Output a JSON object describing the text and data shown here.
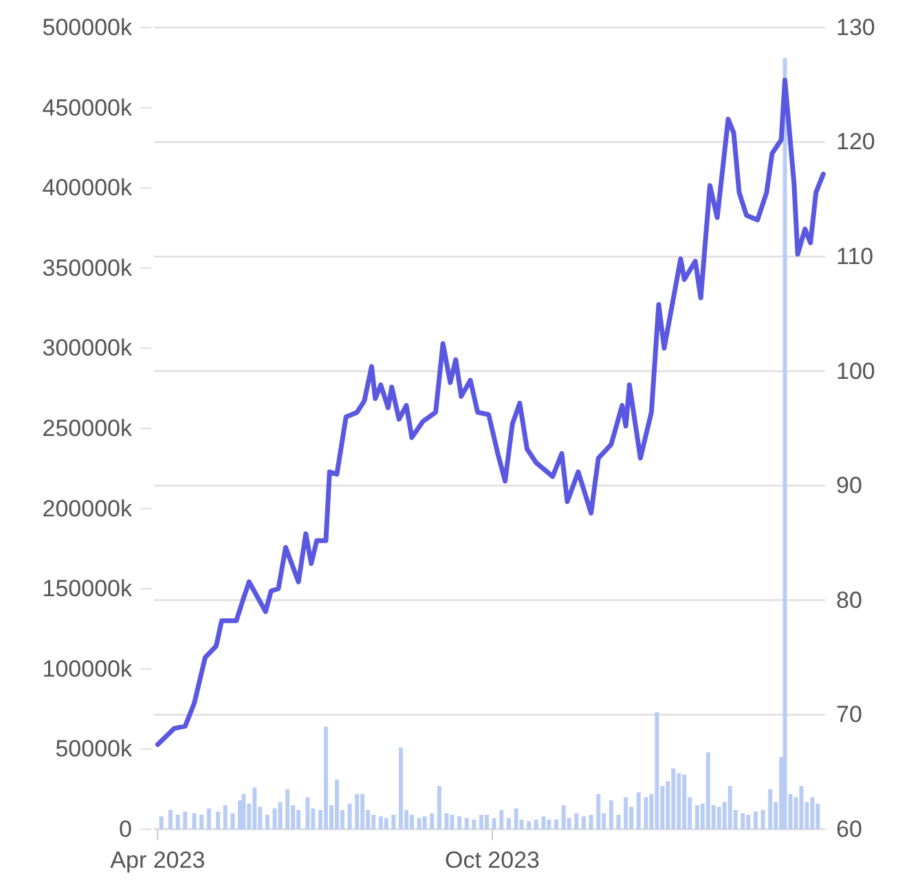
{
  "chart_data": {
    "type": "line",
    "xlim": [
      "2023-03-30",
      "2024-03-31"
    ],
    "xticks": [
      {
        "value": "2023-04-01",
        "label": "Apr 2023"
      },
      {
        "value": "2023-10-01",
        "label": "Oct 2023"
      }
    ],
    "ylim": [
      0,
      500000
    ],
    "yticks": [
      {
        "value": 0,
        "label": "0"
      },
      {
        "value": 50000,
        "label": "50000k"
      },
      {
        "value": 100000,
        "label": "100000k"
      },
      {
        "value": 150000,
        "label": "150000k"
      },
      {
        "value": 200000,
        "label": "200000k"
      },
      {
        "value": 250000,
        "label": "250000k"
      },
      {
        "value": 300000,
        "label": "300000k"
      },
      {
        "value": 350000,
        "label": "350000k"
      },
      {
        "value": 400000,
        "label": "400000k"
      },
      {
        "value": 450000,
        "label": "450000k"
      },
      {
        "value": 500000,
        "label": "500000k"
      }
    ],
    "y2lim": [
      60,
      130
    ],
    "y2ticks": [
      60,
      70,
      80,
      90,
      100,
      110,
      120,
      130
    ],
    "grid": "y",
    "series": [
      {
        "type": "bar",
        "axis": "y",
        "color": "#b9cdf4",
        "x": [
          "2023-04-03",
          "2023-04-08",
          "2023-04-12",
          "2023-04-16",
          "2023-04-21",
          "2023-04-25",
          "2023-04-29",
          "2023-05-04",
          "2023-05-08",
          "2023-05-12",
          "2023-05-16",
          "2023-05-18",
          "2023-05-21",
          "2023-05-24",
          "2023-05-27",
          "2023-05-31",
          "2023-06-04",
          "2023-06-07",
          "2023-06-11",
          "2023-06-14",
          "2023-06-17",
          "2023-06-22",
          "2023-06-25",
          "2023-06-29",
          "2023-07-02",
          "2023-07-05",
          "2023-07-08",
          "2023-07-11",
          "2023-07-15",
          "2023-07-19",
          "2023-07-22",
          "2023-07-25",
          "2023-07-28",
          "2023-08-01",
          "2023-08-04",
          "2023-08-08",
          "2023-08-12",
          "2023-08-15",
          "2023-08-18",
          "2023-08-22",
          "2023-08-25",
          "2023-08-29",
          "2023-09-02",
          "2023-09-06",
          "2023-09-09",
          "2023-09-13",
          "2023-09-17",
          "2023-09-21",
          "2023-09-25",
          "2023-09-28",
          "2023-10-02",
          "2023-10-06",
          "2023-10-10",
          "2023-10-14",
          "2023-10-17",
          "2023-10-21",
          "2023-10-25",
          "2023-10-29",
          "2023-11-01",
          "2023-11-05",
          "2023-11-09",
          "2023-11-12",
          "2023-11-16",
          "2023-11-20",
          "2023-11-24",
          "2023-11-28",
          "2023-12-01",
          "2023-12-05",
          "2023-12-09",
          "2023-12-13",
          "2023-12-16",
          "2023-12-20",
          "2023-12-24",
          "2023-12-27",
          "2023-12-30",
          "2024-01-02",
          "2024-01-05",
          "2024-01-08",
          "2024-01-11",
          "2024-01-14",
          "2024-01-17",
          "2024-01-21",
          "2024-01-24",
          "2024-01-27",
          "2024-01-30",
          "2024-02-02",
          "2024-02-05",
          "2024-02-08",
          "2024-02-11",
          "2024-02-15",
          "2024-02-18",
          "2024-02-22",
          "2024-02-26",
          "2024-03-01",
          "2024-03-04",
          "2024-03-07",
          "2024-03-09",
          "2024-03-12",
          "2024-03-15",
          "2024-03-18",
          "2024-03-21",
          "2024-03-24",
          "2024-03-27"
        ],
        "values": [
          8000,
          12000,
          9000,
          11000,
          10000,
          9000,
          13000,
          11000,
          15000,
          10000,
          18000,
          22000,
          16000,
          26000,
          14000,
          9000,
          13000,
          17000,
          25000,
          15000,
          12000,
          20000,
          13000,
          12000,
          64000,
          15000,
          31000,
          12000,
          16000,
          22000,
          22000,
          12000,
          9000,
          8000,
          7000,
          9000,
          51000,
          12000,
          9000,
          7000,
          8000,
          10000,
          27000,
          10000,
          9000,
          8000,
          7000,
          6000,
          9000,
          9000,
          7000,
          12000,
          7000,
          13000,
          6000,
          5000,
          6000,
          8000,
          6000,
          6000,
          15000,
          7000,
          10000,
          8000,
          9000,
          22000,
          10000,
          18000,
          9000,
          20000,
          14000,
          23000,
          20000,
          22000,
          73000,
          27000,
          30000,
          38000,
          35000,
          34000,
          20000,
          15000,
          16000,
          48000,
          15000,
          14000,
          17000,
          27000,
          12000,
          10000,
          9000,
          11000,
          12000,
          25000,
          17000,
          45000,
          481000,
          22000,
          20000,
          27000,
          17000,
          20000,
          16000
        ]
      },
      {
        "axis": "y2",
        "color": "#5a58e0",
        "x": [
          "2023-04-01",
          "2023-04-10",
          "2023-04-16",
          "2023-04-21",
          "2023-04-27",
          "2023-05-03",
          "2023-05-06",
          "2023-05-14",
          "2023-05-18",
          "2023-05-21",
          "2023-05-30",
          "2023-06-02",
          "2023-06-06",
          "2023-06-10",
          "2023-06-17",
          "2023-06-21",
          "2023-06-24",
          "2023-06-27",
          "2023-07-02",
          "2023-07-04",
          "2023-07-08",
          "2023-07-13",
          "2023-07-19",
          "2023-07-23",
          "2023-07-27",
          "2023-07-29",
          "2023-08-01",
          "2023-08-05",
          "2023-08-07",
          "2023-08-11",
          "2023-08-15",
          "2023-08-18",
          "2023-08-24",
          "2023-08-31",
          "2023-09-04",
          "2023-09-08",
          "2023-09-11",
          "2023-09-14",
          "2023-09-19",
          "2023-09-23",
          "2023-09-29",
          "2023-10-04",
          "2023-10-08",
          "2023-10-12",
          "2023-10-16",
          "2023-10-20",
          "2023-10-25",
          "2023-11-03",
          "2023-11-08",
          "2023-11-11",
          "2023-11-17",
          "2023-11-24",
          "2023-11-28",
          "2023-12-05",
          "2023-12-11",
          "2023-12-13",
          "2023-12-15",
          "2023-12-21",
          "2023-12-27",
          "2023-12-31",
          "2024-01-03",
          "2024-01-12",
          "2024-01-14",
          "2024-01-20",
          "2024-01-23",
          "2024-01-28",
          "2024-02-01",
          "2024-02-07",
          "2024-02-10",
          "2024-02-13",
          "2024-02-17",
          "2024-02-23",
          "2024-02-28",
          "2024-03-02",
          "2024-03-07",
          "2024-03-09",
          "2024-03-14",
          "2024-03-16",
          "2024-03-20",
          "2024-03-23",
          "2024-03-26",
          "2024-03-30"
        ],
        "values": [
          67.4,
          68.8,
          69.0,
          71.0,
          75.0,
          76.0,
          78.2,
          78.2,
          80.2,
          81.6,
          79.0,
          80.8,
          81.0,
          84.6,
          81.6,
          85.8,
          83.2,
          85.2,
          85.2,
          91.2,
          91.0,
          96.0,
          96.4,
          97.4,
          100.4,
          97.6,
          98.8,
          96.8,
          98.6,
          95.8,
          97.0,
          94.2,
          95.6,
          96.4,
          102.4,
          99.0,
          101.0,
          97.8,
          99.2,
          96.4,
          96.2,
          92.8,
          90.4,
          95.4,
          97.2,
          93.2,
          92.0,
          90.8,
          92.8,
          88.6,
          91.2,
          87.6,
          92.4,
          93.6,
          97.0,
          95.2,
          98.8,
          92.4,
          96.4,
          105.8,
          102.0,
          109.8,
          108.0,
          109.6,
          106.4,
          116.2,
          113.4,
          122.0,
          120.8,
          115.6,
          113.6,
          113.2,
          115.6,
          119.0,
          120.2,
          125.4,
          116.4,
          110.2,
          112.4,
          111.2,
          115.6,
          117.2
        ]
      }
    ]
  }
}
